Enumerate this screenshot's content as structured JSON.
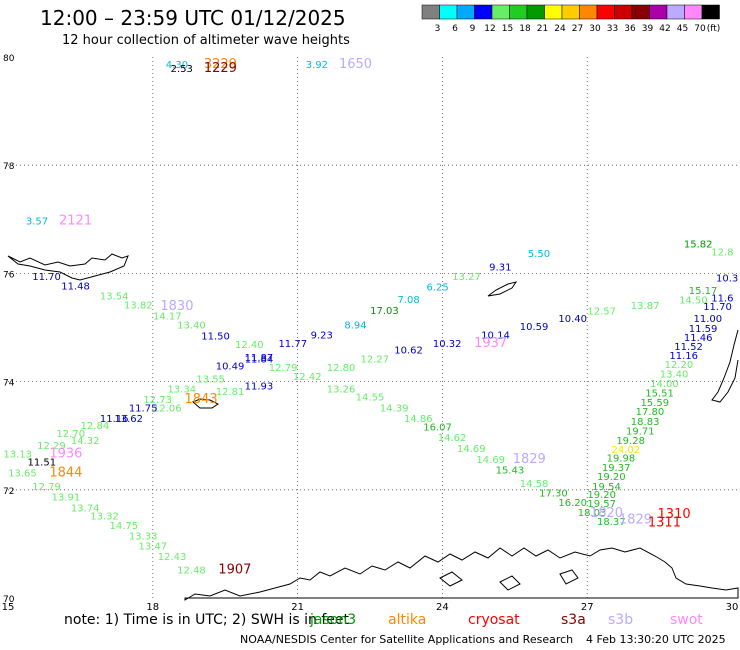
{
  "header": {
    "title": "12:00 – 23:59 UTC 01/12/2025",
    "subtitle": "12 hour collection of altimeter wave heights"
  },
  "legend": {
    "unit": "(ft)",
    "bins": [
      {
        "label": "3",
        "color": "#808080"
      },
      {
        "label": "6",
        "color": "#00ffff"
      },
      {
        "label": "9",
        "color": "#00aaff"
      },
      {
        "label": "12",
        "color": "#0000ff"
      },
      {
        "label": "15",
        "color": "#66ee66"
      },
      {
        "label": "18",
        "color": "#22cc22"
      },
      {
        "label": "21",
        "color": "#009900"
      },
      {
        "label": "24",
        "color": "#ffff00"
      },
      {
        "label": "27",
        "color": "#ffcc00"
      },
      {
        "label": "30",
        "color": "#ff8800"
      },
      {
        "label": "33",
        "color": "#ff0000"
      },
      {
        "label": "36",
        "color": "#cc0000"
      },
      {
        "label": "39",
        "color": "#880000"
      },
      {
        "label": "42",
        "color": "#aa00aa"
      },
      {
        "label": "45",
        "color": "#bbaaff"
      },
      {
        "label": "70",
        "color": "#ff88ff"
      },
      {
        "label": "",
        "color": "#000000"
      }
    ]
  },
  "axes": {
    "x_labels": [
      "15",
      "18",
      "21",
      "24",
      "27",
      "30"
    ],
    "y_labels": [
      "80",
      "78",
      "76",
      "74",
      "72",
      "70"
    ]
  },
  "satellite_colors": {
    "jason3": "#009900",
    "altika": "#ff8800",
    "cryosat": "#ff0000",
    "s3a": "#880000",
    "s3b": "#bbaaff",
    "swot": "#ff88ff",
    "blue": "#0000cc",
    "cyan": "#00bbdd",
    "lgreen": "#66ee66",
    "green": "#22bb22",
    "dgreen": "#009900",
    "yellow": "#eeee00",
    "black": "#000000"
  },
  "observations": [
    {
      "text": "4.30",
      "lon": 18.5,
      "lat": 79.8,
      "c": "cyan"
    },
    {
      "text": "2.53",
      "lon": 18.6,
      "lat": 79.72,
      "c": "black"
    },
    {
      "text": "3229",
      "lon": 19.4,
      "lat": 79.8,
      "c": "altika"
    },
    {
      "text": "1229",
      "lon": 19.4,
      "lat": 79.72,
      "c": "s3a"
    },
    {
      "text": "3.92",
      "lon": 21.4,
      "lat": 79.8,
      "c": "cyan"
    },
    {
      "text": "1650",
      "lon": 22.2,
      "lat": 79.8,
      "c": "s3b"
    },
    {
      "text": "3.57",
      "lon": 15.6,
      "lat": 76.9,
      "c": "cyan"
    },
    {
      "text": "2121",
      "lon": 16.4,
      "lat": 76.9,
      "c": "swot"
    },
    {
      "text": "11.70",
      "lon": 15.8,
      "lat": 75.88,
      "c": "blue"
    },
    {
      "text": "11.48",
      "lon": 16.4,
      "lat": 75.7,
      "c": "blue"
    },
    {
      "text": "13.54",
      "lon": 17.2,
      "lat": 75.52,
      "c": "lgreen"
    },
    {
      "text": "13.82",
      "lon": 17.7,
      "lat": 75.35,
      "c": "lgreen"
    },
    {
      "text": "1830",
      "lon": 18.5,
      "lat": 75.32,
      "c": "s3b"
    },
    {
      "text": "14.17",
      "lon": 18.3,
      "lat": 75.15,
      "c": "lgreen"
    },
    {
      "text": "13.40",
      "lon": 18.8,
      "lat": 74.98,
      "c": "lgreen"
    },
    {
      "text": "11.50",
      "lon": 19.3,
      "lat": 74.78,
      "c": "blue"
    },
    {
      "text": "12.40",
      "lon": 20.0,
      "lat": 74.62,
      "c": "lgreen"
    },
    {
      "text": "11.77",
      "lon": 20.9,
      "lat": 74.64,
      "c": "blue"
    },
    {
      "text": "9.23",
      "lon": 21.5,
      "lat": 74.8,
      "c": "blue"
    },
    {
      "text": "8.94",
      "lon": 22.2,
      "lat": 74.98,
      "c": "cyan"
    },
    {
      "text": "17.03",
      "lon": 22.8,
      "lat": 75.25,
      "c": "dgreen"
    },
    {
      "text": "7.08",
      "lon": 23.3,
      "lat": 75.45,
      "c": "cyan"
    },
    {
      "text": "6.25",
      "lon": 23.9,
      "lat": 75.68,
      "c": "cyan"
    },
    {
      "text": "13.27",
      "lon": 24.5,
      "lat": 75.88,
      "c": "lgreen"
    },
    {
      "text": "9.31",
      "lon": 25.2,
      "lat": 76.05,
      "c": "blue"
    },
    {
      "text": "5.50",
      "lon": 26.0,
      "lat": 76.3,
      "c": "cyan"
    },
    {
      "text": "15.82",
      "lon": 29.3,
      "lat": 76.48,
      "c": "dgreen"
    },
    {
      "text": "12.57",
      "lon": 27.3,
      "lat": 75.24,
      "c": "lgreen"
    },
    {
      "text": "13.87",
      "lon": 28.2,
      "lat": 75.34,
      "c": "lgreen"
    },
    {
      "text": "14.50",
      "lon": 29.2,
      "lat": 75.44,
      "c": "lgreen"
    },
    {
      "text": "10.40",
      "lon": 26.7,
      "lat": 75.1,
      "c": "blue"
    },
    {
      "text": "10.59",
      "lon": 25.9,
      "lat": 74.95,
      "c": "blue"
    },
    {
      "text": "10.14",
      "lon": 25.1,
      "lat": 74.8,
      "c": "blue"
    },
    {
      "text": "1937",
      "lon": 25.0,
      "lat": 74.64,
      "c": "swot"
    },
    {
      "text": "10.32",
      "lon": 24.1,
      "lat": 74.64,
      "c": "blue"
    },
    {
      "text": "10.62",
      "lon": 23.3,
      "lat": 74.52,
      "c": "blue"
    },
    {
      "text": "12.27",
      "lon": 22.6,
      "lat": 74.35,
      "c": "lgreen"
    },
    {
      "text": "12.80",
      "lon": 21.9,
      "lat": 74.2,
      "c": "lgreen"
    },
    {
      "text": "11.87",
      "lon": 20.2,
      "lat": 74.38,
      "c": "blue"
    },
    {
      "text": "11.84",
      "lon": 20.2,
      "lat": 74.35,
      "c": "blue"
    },
    {
      "text": "10.49",
      "lon": 19.6,
      "lat": 74.22,
      "c": "blue"
    },
    {
      "text": "12.79",
      "lon": 20.7,
      "lat": 74.2,
      "c": "lgreen"
    },
    {
      "text": "12.42",
      "lon": 21.2,
      "lat": 74.03,
      "c": "lgreen"
    },
    {
      "text": "11.93",
      "lon": 20.2,
      "lat": 73.85,
      "c": "blue"
    },
    {
      "text": "13.26",
      "lon": 21.9,
      "lat": 73.8,
      "c": "lgreen"
    },
    {
      "text": "12.81",
      "lon": 19.6,
      "lat": 73.75,
      "c": "lgreen"
    },
    {
      "text": "13.55",
      "lon": 19.2,
      "lat": 73.98,
      "c": "lgreen"
    },
    {
      "text": "13.34",
      "lon": 18.6,
      "lat": 73.8,
      "c": "lgreen"
    },
    {
      "text": "1843",
      "lon": 19.0,
      "lat": 73.6,
      "c": "altika"
    },
    {
      "text": "12.73",
      "lon": 18.1,
      "lat": 73.6,
      "c": "lgreen"
    },
    {
      "text": "12.06",
      "lon": 18.3,
      "lat": 73.45,
      "c": "lgreen"
    },
    {
      "text": "11.75",
      "lon": 17.8,
      "lat": 73.45,
      "c": "blue"
    },
    {
      "text": "13.62",
      "lon": 17.5,
      "lat": 73.25,
      "c": "blue"
    },
    {
      "text": "11.16",
      "lon": 17.2,
      "lat": 73.25,
      "c": "blue"
    },
    {
      "text": "12.84",
      "lon": 16.8,
      "lat": 73.12,
      "c": "lgreen"
    },
    {
      "text": "12.70",
      "lon": 16.3,
      "lat": 72.98,
      "c": "lgreen"
    },
    {
      "text": "14.32",
      "lon": 16.6,
      "lat": 72.85,
      "c": "lgreen"
    },
    {
      "text": "12.29",
      "lon": 15.9,
      "lat": 72.75,
      "c": "lgreen"
    },
    {
      "text": "1936",
      "lon": 16.2,
      "lat": 72.6,
      "c": "swot"
    },
    {
      "text": "13.13",
      "lon": 15.2,
      "lat": 72.6,
      "c": "lgreen"
    },
    {
      "text": "11.51",
      "lon": 15.7,
      "lat": 72.45,
      "c": "black"
    },
    {
      "text": "13.65",
      "lon": 15.3,
      "lat": 72.25,
      "c": "lgreen"
    },
    {
      "text": "1844",
      "lon": 16.2,
      "lat": 72.25,
      "c": "altika"
    },
    {
      "text": "12.79",
      "lon": 15.8,
      "lat": 72.0,
      "c": "lgreen"
    },
    {
      "text": "13.91",
      "lon": 16.2,
      "lat": 71.8,
      "c": "lgreen"
    },
    {
      "text": "13.74",
      "lon": 16.6,
      "lat": 71.6,
      "c": "lgreen"
    },
    {
      "text": "13.32",
      "lon": 17.0,
      "lat": 71.45,
      "c": "lgreen"
    },
    {
      "text": "14.75",
      "lon": 17.4,
      "lat": 71.28,
      "c": "lgreen"
    },
    {
      "text": "13.33",
      "lon": 17.8,
      "lat": 71.08,
      "c": "lgreen"
    },
    {
      "text": "13.47",
      "lon": 18.0,
      "lat": 70.9,
      "c": "lgreen"
    },
    {
      "text": "12.43",
      "lon": 18.4,
      "lat": 70.7,
      "c": "lgreen"
    },
    {
      "text": "12.48",
      "lon": 18.8,
      "lat": 70.45,
      "c": "lgreen"
    },
    {
      "text": "1907",
      "lon": 19.7,
      "lat": 70.45,
      "c": "s3a"
    },
    {
      "text": "14.55",
      "lon": 22.5,
      "lat": 73.65,
      "c": "lgreen"
    },
    {
      "text": "14.39",
      "lon": 23.0,
      "lat": 73.45,
      "c": "lgreen"
    },
    {
      "text": "14.86",
      "lon": 23.5,
      "lat": 73.25,
      "c": "lgreen"
    },
    {
      "text": "16.07",
      "lon": 23.9,
      "lat": 73.1,
      "c": "green"
    },
    {
      "text": "14.62",
      "lon": 24.2,
      "lat": 72.9,
      "c": "lgreen"
    },
    {
      "text": "14.69",
      "lon": 24.6,
      "lat": 72.7,
      "c": "lgreen"
    },
    {
      "text": "14.69",
      "lon": 25.0,
      "lat": 72.5,
      "c": "lgreen"
    },
    {
      "text": "1829",
      "lon": 25.8,
      "lat": 72.5,
      "c": "s3b"
    },
    {
      "text": "15.43",
      "lon": 25.4,
      "lat": 72.3,
      "c": "green"
    },
    {
      "text": "14.58",
      "lon": 25.9,
      "lat": 72.05,
      "c": "lgreen"
    },
    {
      "text": "17.30",
      "lon": 26.3,
      "lat": 71.88,
      "c": "green"
    },
    {
      "text": "16.20",
      "lon": 26.7,
      "lat": 71.7,
      "c": "green"
    },
    {
      "text": "18.03",
      "lon": 27.1,
      "lat": 71.52,
      "c": "green"
    },
    {
      "text": "18.37",
      "lon": 27.5,
      "lat": 71.35,
      "c": "green"
    },
    {
      "text": "1829",
      "lon": 28.0,
      "lat": 71.38,
      "c": "s3b"
    },
    {
      "text": "1310",
      "lon": 28.8,
      "lat": 71.48,
      "c": "cryosat"
    },
    {
      "text": "1311",
      "lon": 28.6,
      "lat": 71.32,
      "c": "cryosat"
    },
    {
      "text": "12.8",
      "lon": 29.8,
      "lat": 76.33,
      "c": "lgreen"
    },
    {
      "text": "10.3",
      "lon": 29.9,
      "lat": 75.85,
      "c": "blue"
    },
    {
      "text": "15.17",
      "lon": 29.4,
      "lat": 75.62,
      "c": "green"
    },
    {
      "text": "11.6",
      "lon": 29.8,
      "lat": 75.48,
      "c": "blue"
    },
    {
      "text": "11.70",
      "lon": 29.7,
      "lat": 75.32,
      "c": "blue"
    },
    {
      "text": "11.00",
      "lon": 29.5,
      "lat": 75.1,
      "c": "blue"
    },
    {
      "text": "11.59",
      "lon": 29.4,
      "lat": 74.92,
      "c": "blue"
    },
    {
      "text": "11.46",
      "lon": 29.3,
      "lat": 74.75,
      "c": "blue"
    },
    {
      "text": "11.52",
      "lon": 29.1,
      "lat": 74.58,
      "c": "blue"
    },
    {
      "text": "11.16",
      "lon": 29.0,
      "lat": 74.42,
      "c": "blue"
    },
    {
      "text": "12.20",
      "lon": 28.9,
      "lat": 74.25,
      "c": "lgreen"
    },
    {
      "text": "13.40",
      "lon": 28.8,
      "lat": 74.08,
      "c": "lgreen"
    },
    {
      "text": "14.00",
      "lon": 28.6,
      "lat": 73.9,
      "c": "lgreen"
    },
    {
      "text": "15.51",
      "lon": 28.5,
      "lat": 73.72,
      "c": "green"
    },
    {
      "text": "15.59",
      "lon": 28.4,
      "lat": 73.55,
      "c": "green"
    },
    {
      "text": "17.80",
      "lon": 28.3,
      "lat": 73.38,
      "c": "green"
    },
    {
      "text": "18.83",
      "lon": 28.2,
      "lat": 73.2,
      "c": "green"
    },
    {
      "text": "19.71",
      "lon": 28.1,
      "lat": 73.02,
      "c": "green"
    },
    {
      "text": "19.28",
      "lon": 27.9,
      "lat": 72.85,
      "c": "green"
    },
    {
      "text": "24.02",
      "lon": 27.8,
      "lat": 72.68,
      "c": "yellow"
    },
    {
      "text": "19.98",
      "lon": 27.7,
      "lat": 72.52,
      "c": "green"
    },
    {
      "text": "19.37",
      "lon": 27.6,
      "lat": 72.35,
      "c": "green"
    },
    {
      "text": "19.20",
      "lon": 27.5,
      "lat": 72.18,
      "c": "green"
    },
    {
      "text": "19.54",
      "lon": 27.4,
      "lat": 72.0,
      "c": "green"
    },
    {
      "text": "19.20",
      "lon": 27.3,
      "lat": 71.85,
      "c": "green"
    },
    {
      "text": "19.57",
      "lon": 27.3,
      "lat": 71.68,
      "c": "green"
    },
    {
      "text": "1820",
      "lon": 27.4,
      "lat": 71.5,
      "c": "s3b"
    }
  ],
  "footer": {
    "note": "note:  1) Time is in UTC;  2) SWH is in feet",
    "sats": [
      {
        "label": "jason3",
        "c": "jason3"
      },
      {
        "label": "altika",
        "c": "altika"
      },
      {
        "label": "cryosat",
        "c": "cryosat"
      },
      {
        "label": "s3a",
        "c": "s3a"
      },
      {
        "label": "s3b",
        "c": "s3b"
      },
      {
        "label": "swot",
        "c": "swot"
      }
    ],
    "credit": "NOAA/NESDIS Center for Satellite Applications and Research",
    "timestamp": "4 Feb 13:30:20 UTC 2025"
  }
}
